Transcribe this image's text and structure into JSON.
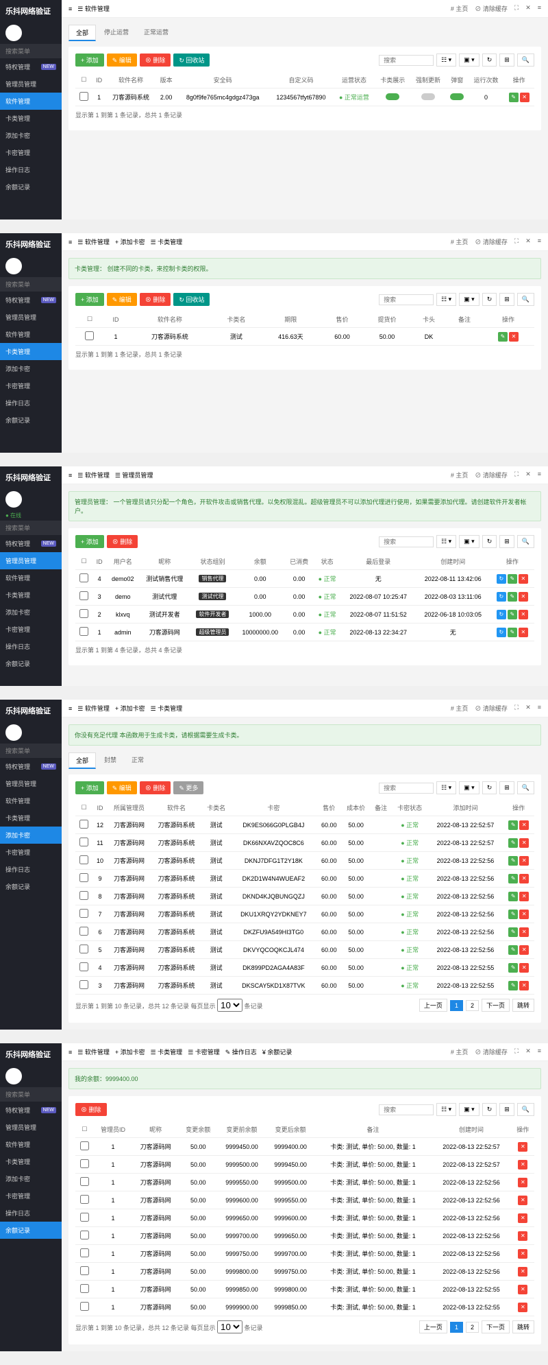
{
  "brand": "乐抖网络验证",
  "topbar": {
    "home": "# 主页",
    "clear": "⊘ 清除缓存",
    "expand": "⛶",
    "settings": "✕",
    "more": "≡"
  },
  "nav": {
    "search": "搜索菜单",
    "items": [
      "特权管理",
      "管理员管理",
      "软件管理",
      "卡类管理",
      "添加卡密",
      "卡密管理",
      "操作日志",
      "余额记录"
    ],
    "online": "● 在线"
  },
  "buttons": {
    "add": "+ 添加",
    "edit": "✎ 编辑",
    "delete": "⊗ 删除",
    "recycle": "↻ 回收站",
    "more": "✎ 更多"
  },
  "search_placeholder": "搜索",
  "panel1": {
    "breadcrumb": [
      "≡",
      "☰ 软件管理"
    ],
    "tabs": [
      "全部",
      "停止运营",
      "正常运营"
    ],
    "columns": [
      "☐",
      "ID",
      "软件名称",
      "版本",
      "安全码",
      "自定义码",
      "运营状态",
      "卡类展示",
      "强制更新",
      "弹窗",
      "运行次数",
      "操作"
    ],
    "rows": [
      {
        "id": "1",
        "name": "刀客源码系统",
        "version": "2.00",
        "code": "8g0f9fe765mc4gdgz473ga",
        "custom": "1234567tfyt67890",
        "status": "正常运营",
        "t1": "on",
        "t2": "off",
        "t3": "on",
        "runs": "0"
      }
    ],
    "footer": "显示第 1 到第 1 条记录，总共 1 条记录"
  },
  "panel2": {
    "breadcrumb": [
      "≡",
      "☰ 软件管理",
      "+ 添加卡密",
      "☰ 卡类管理"
    ],
    "alert": "卡类管理：\n创建不同的卡类，来控制卡类的权限。",
    "columns": [
      "☐",
      "ID",
      "软件名称",
      "卡类名",
      "期限",
      "售价",
      "提货价",
      "卡头",
      "备注",
      "操作"
    ],
    "rows": [
      {
        "id": "1",
        "soft": "刀客源码系统",
        "type": "测试",
        "period": "416.63天",
        "price": "60.00",
        "cost": "50.00",
        "head": "DK",
        "note": ""
      }
    ],
    "footer": "显示第 1 到第 1 条记录，总共 1 条记录"
  },
  "panel3": {
    "breadcrumb": [
      "≡",
      "☰ 软件管理",
      "☰ 管理员管理"
    ],
    "alert": "管理员管理：\n一个管理员请只分配一个角色，开软件攻击或销售代理。以免权限混乱。超级管理员不可以添加代理进行使用，如果需要添加代理。请创建软件开发者帐户。",
    "columns": [
      "☐",
      "ID",
      "用户名",
      "昵称",
      "状态组别",
      "余额",
      "已消费",
      "状态",
      "最后登录",
      "创建时间",
      "操作"
    ],
    "rows": [
      {
        "id": "4",
        "user": "demo02",
        "nick": "测试销售代理",
        "tag": "销售代理",
        "bal": "0.00",
        "spent": "0.00",
        "status": "正常",
        "last": "无",
        "created": "2022-08-11 13:42:06"
      },
      {
        "id": "3",
        "user": "demo",
        "nick": "测试代理",
        "tag": "测试代理",
        "bal": "0.00",
        "spent": "0.00",
        "status": "正常",
        "last": "2022-08-07 10:25:47",
        "created": "2022-08-03 13:11:06"
      },
      {
        "id": "2",
        "user": "klxvq",
        "nick": "测试开发者",
        "tag": "软件开发者",
        "bal": "1000.00",
        "spent": "0.00",
        "status": "正常",
        "last": "2022-08-07 11:51:52",
        "created": "2022-06-18 10:03:05"
      },
      {
        "id": "1",
        "user": "admin",
        "nick": "刀客源码网",
        "tag": "超级管理员",
        "bal": "10000000.00",
        "spent": "0.00",
        "status": "正常",
        "last": "2022-08-13 22:34:27",
        "created": "无"
      }
    ],
    "footer": "显示第 1 到第 4 条记录，总共 4 条记录"
  },
  "panel4": {
    "breadcrumb": [
      "≡",
      "☰ 软件管理",
      "+ 添加卡密",
      "☰ 卡类管理"
    ],
    "alert": "你没有充足代理\n本函数用于生成卡类，请根据需要生成卡类。",
    "tabs": [
      "全部",
      "封禁",
      "正常"
    ],
    "columns": [
      "☐",
      "ID",
      "所属管理员",
      "软件名",
      "卡类名",
      "卡密",
      "售价",
      "成本价",
      "备注",
      "卡密状态",
      "添加时间",
      "操作"
    ],
    "rows": [
      {
        "id": "12",
        "admin": "刀客源码网",
        "soft": "刀客源码系统",
        "type": "测试",
        "key": "DK9ES066G0PLGB4J",
        "price": "60.00",
        "cost": "50.00",
        "status": "正常",
        "time": "2022-08-13 22:52:57"
      },
      {
        "id": "11",
        "admin": "刀客源码网",
        "soft": "刀客源码系统",
        "type": "测试",
        "key": "DK66NXAVZQOC8C6",
        "price": "60.00",
        "cost": "50.00",
        "status": "正常",
        "time": "2022-08-13 22:52:57"
      },
      {
        "id": "10",
        "admin": "刀客源码网",
        "soft": "刀客源码系统",
        "type": "测试",
        "key": "DKNJ7DFG1T2Y18K",
        "price": "60.00",
        "cost": "50.00",
        "status": "正常",
        "time": "2022-08-13 22:52:56"
      },
      {
        "id": "9",
        "admin": "刀客源码网",
        "soft": "刀客源码系统",
        "type": "测试",
        "key": "DK2D1W4N4WUEAF2",
        "price": "60.00",
        "cost": "50.00",
        "status": "正常",
        "time": "2022-08-13 22:52:56"
      },
      {
        "id": "8",
        "admin": "刀客源码网",
        "soft": "刀客源码系统",
        "type": "测试",
        "key": "DKND4KJQBUNGQZJ",
        "price": "60.00",
        "cost": "50.00",
        "status": "正常",
        "time": "2022-08-13 22:52:56"
      },
      {
        "id": "7",
        "admin": "刀客源码网",
        "soft": "刀客源码系统",
        "type": "测试",
        "key": "DKU1XRQY2YDKNEY7",
        "price": "60.00",
        "cost": "50.00",
        "status": "正常",
        "time": "2022-08-13 22:52:56"
      },
      {
        "id": "6",
        "admin": "刀客源码网",
        "soft": "刀客源码系统",
        "type": "测试",
        "key": "DKZFU9A549HI3TG0",
        "price": "60.00",
        "cost": "50.00",
        "status": "正常",
        "time": "2022-08-13 22:52:56"
      },
      {
        "id": "5",
        "admin": "刀客源码网",
        "soft": "刀客源码系统",
        "type": "测试",
        "key": "DKVYQCOQKCJL474",
        "price": "60.00",
        "cost": "50.00",
        "status": "正常",
        "time": "2022-08-13 22:52:56"
      },
      {
        "id": "4",
        "admin": "刀客源码网",
        "soft": "刀客源码系统",
        "type": "测试",
        "key": "DK899PD2AGA4A83F",
        "price": "60.00",
        "cost": "50.00",
        "status": "正常",
        "time": "2022-08-13 22:52:55"
      },
      {
        "id": "3",
        "admin": "刀客源码网",
        "soft": "刀客源码系统",
        "type": "测试",
        "key": "DKSCAY5KD1X87TVK",
        "price": "60.00",
        "cost": "50.00",
        "status": "正常",
        "time": "2022-08-13 22:52:55"
      }
    ],
    "footer": "显示第 1 到第 10 条记录，总共 12 条记录 每页显示",
    "pagination": {
      "prev": "上一页",
      "pages": [
        "1",
        "2"
      ],
      "next": "下一页",
      "jump": "跳转"
    }
  },
  "panel5": {
    "breadcrumb": [
      "≡",
      "☰ 软件管理",
      "+ 添加卡密",
      "☰ 卡类管理",
      "☰ 卡密管理",
      "✎ 操作日志",
      "¥ 余额记录"
    ],
    "alert": "我的余额：9999400.00",
    "columns": [
      "☐",
      "管理员ID",
      "昵称",
      "变更余额",
      "变更前余额",
      "变更后余额",
      "备注",
      "创建时间",
      "操作"
    ],
    "rows": [
      {
        "id": "1",
        "nick": "刀客源码网",
        "change": "50.00",
        "before": "9999450.00",
        "after": "9999400.00",
        "note": "卡类: 测试, 单价: 50.00, 数量: 1",
        "time": "2022-08-13 22:52:57"
      },
      {
        "id": "1",
        "nick": "刀客源码网",
        "change": "50.00",
        "before": "9999500.00",
        "after": "9999450.00",
        "note": "卡类: 测试, 单价: 50.00, 数量: 1",
        "time": "2022-08-13 22:52:57"
      },
      {
        "id": "1",
        "nick": "刀客源码网",
        "change": "50.00",
        "before": "9999550.00",
        "after": "9999500.00",
        "note": "卡类: 测试, 单价: 50.00, 数量: 1",
        "time": "2022-08-13 22:52:56"
      },
      {
        "id": "1",
        "nick": "刀客源码网",
        "change": "50.00",
        "before": "9999600.00",
        "after": "9999550.00",
        "note": "卡类: 测试, 单价: 50.00, 数量: 1",
        "time": "2022-08-13 22:52:56"
      },
      {
        "id": "1",
        "nick": "刀客源码网",
        "change": "50.00",
        "before": "9999650.00",
        "after": "9999600.00",
        "note": "卡类: 测试, 单价: 50.00, 数量: 1",
        "time": "2022-08-13 22:52:56"
      },
      {
        "id": "1",
        "nick": "刀客源码网",
        "change": "50.00",
        "before": "9999700.00",
        "after": "9999650.00",
        "note": "卡类: 测试, 单价: 50.00, 数量: 1",
        "time": "2022-08-13 22:52:56"
      },
      {
        "id": "1",
        "nick": "刀客源码网",
        "change": "50.00",
        "before": "9999750.00",
        "after": "9999700.00",
        "note": "卡类: 测试, 单价: 50.00, 数量: 1",
        "time": "2022-08-13 22:52:56"
      },
      {
        "id": "1",
        "nick": "刀客源码网",
        "change": "50.00",
        "before": "9999800.00",
        "after": "9999750.00",
        "note": "卡类: 测试, 单价: 50.00, 数量: 1",
        "time": "2022-08-13 22:52:56"
      },
      {
        "id": "1",
        "nick": "刀客源码网",
        "change": "50.00",
        "before": "9999850.00",
        "after": "9999800.00",
        "note": "卡类: 测试, 单价: 50.00, 数量: 1",
        "time": "2022-08-13 22:52:55"
      },
      {
        "id": "1",
        "nick": "刀客源码网",
        "change": "50.00",
        "before": "9999900.00",
        "after": "9999850.00",
        "note": "卡类: 测试, 单价: 50.00, 数量: 1",
        "time": "2022-08-13 22:52:55"
      }
    ],
    "footer": "显示第 1 到第 10 条记录，总共 12 条记录 每页显示",
    "pagination": {
      "prev": "上一页",
      "pages": [
        "1",
        "2"
      ],
      "next": "下一页",
      "jump": "跳转"
    }
  }
}
